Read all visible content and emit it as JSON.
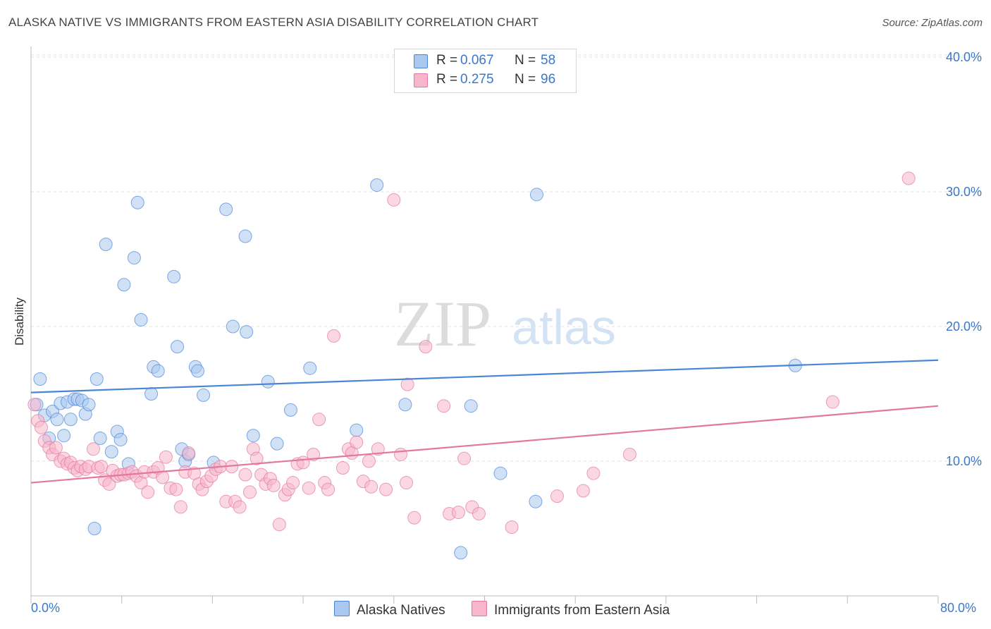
{
  "header": {
    "title": "ALASKA NATIVE VS IMMIGRANTS FROM EASTERN ASIA DISABILITY CORRELATION CHART",
    "source": "Source: ZipAtlas.com"
  },
  "watermark": {
    "zip": "ZIP",
    "atlas": "atlas"
  },
  "legend": {
    "rows": [
      {
        "r_label": "R =",
        "r_value": "0.067",
        "n_label": "N =",
        "n_value": "58",
        "color": "#aac8ef"
      },
      {
        "r_label": "R =",
        "r_value": "0.275",
        "n_label": "N =",
        "n_value": "96",
        "color": "#f7b6cb"
      }
    ]
  },
  "bottom_legend": [
    {
      "label": "Alaska Natives",
      "color": "#aac8ef"
    },
    {
      "label": "Immigrants from Eastern Asia",
      "color": "#f7b6cb"
    }
  ],
  "axes": {
    "ylabel": "Disability",
    "x_min_label": "0.0%",
    "x_max_label": "80.0%",
    "y_ticks": [
      "10.0%",
      "20.0%",
      "30.0%",
      "40.0%"
    ]
  },
  "chart_data": {
    "type": "scatter",
    "title": "ALASKA NATIVE VS IMMIGRANTS FROM EASTERN ASIA DISABILITY CORRELATION CHART",
    "xlabel": "",
    "ylabel": "Disability",
    "xlim": [
      0,
      80
    ],
    "ylim": [
      0,
      42
    ],
    "y_ticks": [
      10,
      20,
      30,
      40
    ],
    "grid": true,
    "legend_position": "top-center",
    "series": [
      {
        "name": "Alaska Natives",
        "color": "#4a86d8",
        "fill": "#aac8ef",
        "trend": {
          "x": [
            0,
            80
          ],
          "y": [
            15.1,
            17.5
          ]
        },
        "points": [
          [
            0.5,
            14.2
          ],
          [
            0.8,
            16.1
          ],
          [
            1.2,
            13.4
          ],
          [
            1.6,
            11.7
          ],
          [
            1.9,
            13.7
          ],
          [
            2.3,
            13.1
          ],
          [
            2.6,
            14.3
          ],
          [
            2.9,
            11.9
          ],
          [
            3.2,
            14.4
          ],
          [
            3.5,
            13.1
          ],
          [
            3.8,
            14.6
          ],
          [
            4.1,
            14.6
          ],
          [
            4.5,
            14.5
          ],
          [
            4.8,
            13.5
          ],
          [
            5.1,
            14.2
          ],
          [
            5.6,
            5.0
          ],
          [
            5.8,
            16.1
          ],
          [
            6.1,
            11.7
          ],
          [
            6.6,
            26.1
          ],
          [
            7.1,
            10.7
          ],
          [
            7.6,
            12.2
          ],
          [
            7.9,
            11.6
          ],
          [
            8.2,
            23.1
          ],
          [
            8.6,
            9.8
          ],
          [
            9.1,
            25.1
          ],
          [
            9.4,
            29.2
          ],
          [
            9.7,
            20.5
          ],
          [
            10.6,
            15.0
          ],
          [
            10.8,
            17.0
          ],
          [
            11.2,
            16.7
          ],
          [
            12.6,
            23.7
          ],
          [
            12.9,
            18.5
          ],
          [
            13.3,
            10.9
          ],
          [
            13.6,
            10.0
          ],
          [
            13.9,
            10.5
          ],
          [
            14.5,
            17.0
          ],
          [
            14.7,
            16.7
          ],
          [
            15.2,
            14.9
          ],
          [
            16.1,
            9.9
          ],
          [
            17.2,
            28.7
          ],
          [
            17.8,
            20.0
          ],
          [
            18.9,
            26.7
          ],
          [
            19.0,
            19.6
          ],
          [
            19.6,
            11.9
          ],
          [
            20.9,
            15.9
          ],
          [
            21.7,
            11.3
          ],
          [
            22.9,
            13.8
          ],
          [
            24.6,
            16.9
          ],
          [
            28.7,
            12.3
          ],
          [
            30.5,
            30.5
          ],
          [
            33.0,
            14.2
          ],
          [
            37.9,
            3.2
          ],
          [
            38.8,
            14.1
          ],
          [
            41.4,
            9.1
          ],
          [
            44.5,
            7.0
          ],
          [
            44.6,
            29.8
          ],
          [
            67.4,
            17.1
          ]
        ]
      },
      {
        "name": "Immigrants from Eastern Asia",
        "color": "#e3779d",
        "fill": "#f7b6cb",
        "trend": {
          "x": [
            0,
            80
          ],
          "y": [
            8.4,
            14.1
          ]
        },
        "points": [
          [
            0.3,
            14.2
          ],
          [
            0.6,
            13.0
          ],
          [
            0.9,
            12.5
          ],
          [
            1.2,
            11.5
          ],
          [
            1.6,
            11.0
          ],
          [
            1.9,
            10.5
          ],
          [
            2.2,
            11.0
          ],
          [
            2.6,
            10.0
          ],
          [
            2.9,
            10.2
          ],
          [
            3.2,
            9.8
          ],
          [
            3.5,
            9.9
          ],
          [
            3.8,
            9.5
          ],
          [
            4.1,
            9.3
          ],
          [
            4.4,
            9.6
          ],
          [
            4.8,
            9.4
          ],
          [
            5.1,
            9.6
          ],
          [
            5.5,
            10.9
          ],
          [
            5.9,
            9.5
          ],
          [
            6.2,
            9.6
          ],
          [
            6.5,
            8.6
          ],
          [
            6.9,
            8.3
          ],
          [
            7.2,
            9.3
          ],
          [
            7.6,
            8.9
          ],
          [
            7.9,
            9.0
          ],
          [
            8.2,
            9.0
          ],
          [
            8.6,
            9.1
          ],
          [
            8.9,
            9.2
          ],
          [
            9.3,
            8.9
          ],
          [
            9.7,
            8.4
          ],
          [
            10.0,
            9.2
          ],
          [
            10.3,
            7.7
          ],
          [
            10.8,
            9.2
          ],
          [
            11.2,
            9.5
          ],
          [
            11.6,
            8.8
          ],
          [
            11.9,
            10.3
          ],
          [
            12.3,
            8.0
          ],
          [
            12.8,
            7.9
          ],
          [
            13.2,
            6.6
          ],
          [
            13.6,
            9.2
          ],
          [
            13.9,
            10.6
          ],
          [
            14.4,
            9.1
          ],
          [
            14.8,
            8.3
          ],
          [
            15.1,
            7.9
          ],
          [
            15.5,
            8.5
          ],
          [
            15.9,
            8.9
          ],
          [
            16.3,
            9.4
          ],
          [
            16.7,
            9.6
          ],
          [
            17.2,
            7.0
          ],
          [
            17.7,
            9.6
          ],
          [
            18.0,
            7.0
          ],
          [
            18.4,
            6.6
          ],
          [
            18.9,
            9.0
          ],
          [
            19.3,
            7.7
          ],
          [
            19.6,
            10.9
          ],
          [
            19.9,
            10.2
          ],
          [
            20.3,
            9.0
          ],
          [
            20.7,
            8.3
          ],
          [
            21.1,
            8.7
          ],
          [
            21.4,
            8.2
          ],
          [
            21.9,
            5.3
          ],
          [
            22.4,
            7.5
          ],
          [
            22.7,
            7.9
          ],
          [
            23.1,
            8.4
          ],
          [
            23.5,
            9.8
          ],
          [
            24.0,
            9.9
          ],
          [
            24.5,
            8.0
          ],
          [
            24.9,
            10.5
          ],
          [
            25.4,
            13.1
          ],
          [
            25.9,
            8.4
          ],
          [
            26.2,
            7.9
          ],
          [
            26.7,
            19.3
          ],
          [
            27.5,
            9.5
          ],
          [
            28.0,
            10.9
          ],
          [
            28.3,
            10.6
          ],
          [
            28.7,
            11.4
          ],
          [
            29.3,
            8.5
          ],
          [
            29.8,
            10.0
          ],
          [
            30.0,
            8.1
          ],
          [
            30.6,
            10.9
          ],
          [
            31.3,
            7.9
          ],
          [
            32.0,
            29.4
          ],
          [
            32.6,
            10.5
          ],
          [
            33.1,
            8.4
          ],
          [
            33.2,
            15.7
          ],
          [
            33.8,
            5.8
          ],
          [
            34.8,
            18.5
          ],
          [
            36.4,
            14.1
          ],
          [
            36.9,
            6.1
          ],
          [
            37.7,
            6.2
          ],
          [
            38.2,
            10.2
          ],
          [
            38.9,
            6.6
          ],
          [
            39.5,
            6.1
          ],
          [
            42.4,
            5.1
          ],
          [
            46.4,
            7.4
          ],
          [
            48.7,
            7.8
          ],
          [
            49.6,
            9.1
          ],
          [
            52.8,
            10.5
          ],
          [
            70.7,
            14.4
          ],
          [
            77.4,
            31.0
          ]
        ]
      }
    ]
  }
}
